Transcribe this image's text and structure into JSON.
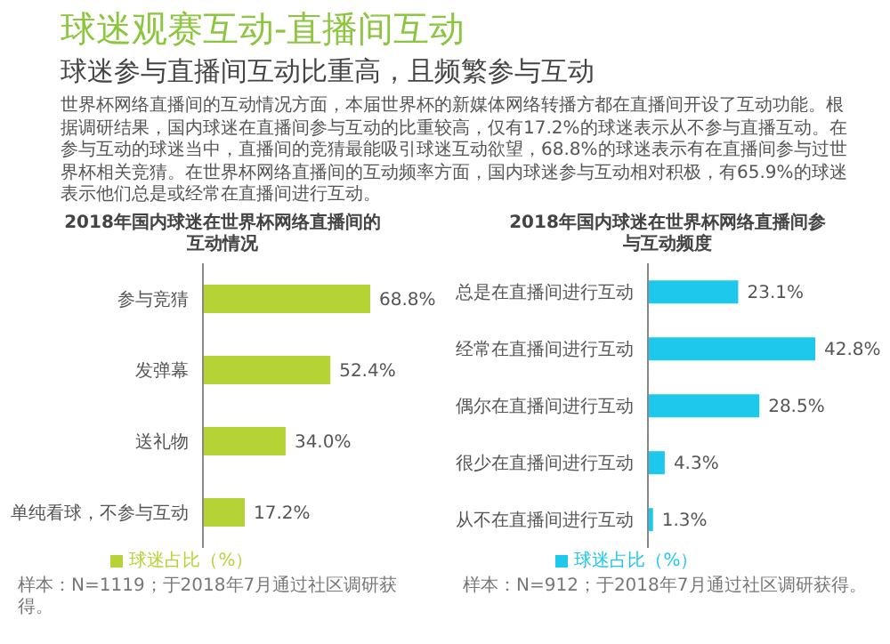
{
  "chart_data": [
    {
      "type": "other",
      "title": "球迷观赛互动-直播间互动",
      "subtitle": "球迷参与直播间互动比重高，且频繁参与互动",
      "annotations": [
        "世界杯网络直播间的互动情况方面，本届世界杯的新媒体网络转播方都在直播间开设了互动功能。根据调研结果，国内球迷在直播间参与互动的比重较高，仅有17.2%的球迷表示从不参与直播互动。在参与互动的球迷当中，直播间的竞猜最能吸引球迷互动欲望，68.8%的球迷表示有在直播间参与过世界杯相关竞猜。在世界杯网络直播间的互动频率方面，国内球迷参与互动相对积极，有65.9%的球迷表示他们总是或经常在直播间进行互动。"
      ]
    },
    {
      "type": "bar",
      "orientation": "horizontal",
      "title": "2018年国内球迷在世界杯网络直播间的互动情况",
      "categories": [
        "参与竞猜",
        "发弹幕",
        "送礼物",
        "单纯看球，不参与互动"
      ],
      "series": [
        {
          "name": "球迷占比（%）",
          "color": "#b5d334",
          "values": [
            68.8,
            52.4,
            34.0,
            17.2
          ],
          "value_labels": [
            "68.8%",
            "52.4%",
            "34.0%",
            "17.2%"
          ]
        }
      ],
      "legend": "bottom",
      "tick_labels": "y",
      "annotations": [
        "样本：N=1119；于2018年7月通过社区调研获得。"
      ]
    },
    {
      "type": "bar",
      "orientation": "horizontal",
      "title": "2018年国内球迷在世界杯网络直播间参与互动频度",
      "categories": [
        "总是在直播间进行互动",
        "经常在直播间进行互动",
        "偶尔在直播间进行互动",
        "很少在直播间进行互动",
        "从不在直播间进行互动"
      ],
      "series": [
        {
          "name": "球迷占比（%）",
          "color": "#1ec8ec",
          "values": [
            23.1,
            42.8,
            28.5,
            4.3,
            1.3
          ],
          "value_labels": [
            "23.1%",
            "42.8%",
            "28.5%",
            "4.3%",
            "1.3%"
          ]
        }
      ],
      "legend": "bottom",
      "tick_labels": "y",
      "annotations": [
        "样本：N=912；于2018年7月通过社区调研获得。"
      ]
    }
  ]
}
